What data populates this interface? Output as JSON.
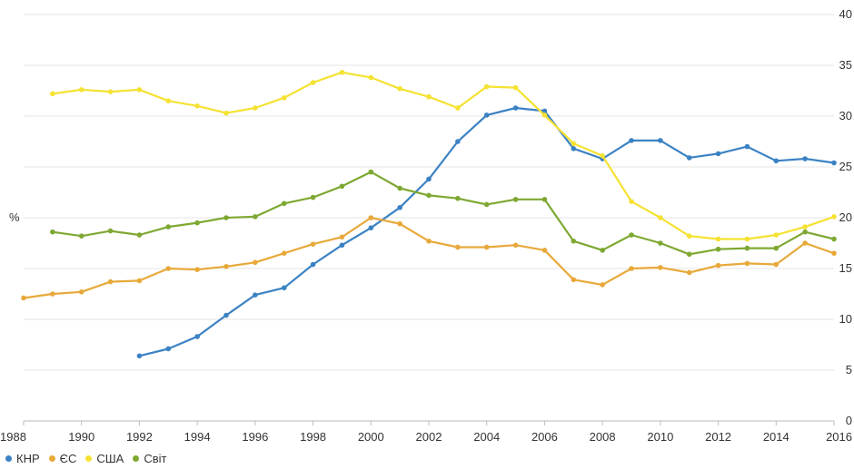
{
  "chart_data": {
    "type": "line",
    "ylabel": "%",
    "xlim": [
      1988,
      2016
    ],
    "ylim": [
      0,
      40
    ],
    "y_axis_position": "right",
    "x_ticks": [
      1988,
      1990,
      1992,
      1994,
      1996,
      1998,
      2000,
      2002,
      2004,
      2006,
      2008,
      2010,
      2012,
      2014,
      2016
    ],
    "y_ticks": [
      0,
      5,
      10,
      15,
      20,
      25,
      30,
      35,
      40
    ],
    "grid": "horizontal",
    "legend_position": "bottom-left",
    "series": [
      {
        "name": "КНР",
        "color": "#3b82c4",
        "x": [
          1992,
          1993,
          1994,
          1995,
          1996,
          1997,
          1998,
          1999,
          2000,
          2001,
          2002,
          2003,
          2004,
          2005,
          2006,
          2007,
          2008,
          2009,
          2010,
          2011,
          2012,
          2013,
          2014,
          2015,
          2016
        ],
        "values": [
          6.4,
          7.1,
          8.3,
          10.4,
          12.4,
          13.1,
          15.4,
          17.3,
          19.0,
          21.0,
          23.8,
          27.5,
          30.1,
          30.8,
          30.5,
          26.8,
          25.8,
          27.6,
          27.6,
          25.9,
          26.3,
          27.0,
          25.6,
          25.8,
          25.4
        ]
      },
      {
        "name": "ЄС",
        "color": "#e8a93a",
        "x": [
          1988,
          1989,
          1990,
          1991,
          1992,
          1993,
          1994,
          1995,
          1996,
          1997,
          1998,
          1999,
          2000,
          2001,
          2002,
          2003,
          2004,
          2005,
          2006,
          2007,
          2008,
          2009,
          2010,
          2011,
          2012,
          2013,
          2014,
          2015,
          2016
        ],
        "values": [
          12.1,
          12.5,
          12.7,
          13.7,
          13.8,
          15.0,
          14.9,
          15.2,
          15.6,
          16.5,
          17.4,
          18.1,
          20.0,
          19.4,
          17.7,
          17.1,
          17.1,
          17.3,
          16.8,
          13.9,
          13.4,
          15.0,
          15.1,
          14.6,
          15.3,
          15.5,
          15.4,
          17.5,
          16.5
        ]
      },
      {
        "name": "США",
        "color": "#f5e232",
        "x": [
          1989,
          1990,
          1991,
          1992,
          1993,
          1994,
          1995,
          1996,
          1997,
          1998,
          1999,
          2000,
          2001,
          2002,
          2003,
          2004,
          2005,
          2006,
          2007,
          2008,
          2009,
          2010,
          2011,
          2012,
          2013,
          2014,
          2015,
          2016
        ],
        "values": [
          32.2,
          32.6,
          32.4,
          32.6,
          31.5,
          31.0,
          30.3,
          30.8,
          31.8,
          33.3,
          34.3,
          33.8,
          32.7,
          31.9,
          30.8,
          32.9,
          32.8,
          30.1,
          27.3,
          26.1,
          21.6,
          20.0,
          18.2,
          17.9,
          17.9,
          18.3,
          19.1,
          20.1
        ]
      },
      {
        "name": "Світ",
        "color": "#7ea832",
        "x": [
          1989,
          1990,
          1991,
          1992,
          1993,
          1994,
          1995,
          1996,
          1997,
          1998,
          1999,
          2000,
          2001,
          2002,
          2003,
          2004,
          2005,
          2006,
          2007,
          2008,
          2009,
          2010,
          2011,
          2012,
          2013,
          2014,
          2015,
          2016
        ],
        "values": [
          18.6,
          18.2,
          18.7,
          18.3,
          19.1,
          19.5,
          20.0,
          20.1,
          21.4,
          22.0,
          23.1,
          24.5,
          22.9,
          22.2,
          21.9,
          21.3,
          21.8,
          21.8,
          17.7,
          16.8,
          18.3,
          17.5,
          16.4,
          16.9,
          17.0,
          17.0,
          18.6,
          17.9
        ]
      }
    ]
  }
}
